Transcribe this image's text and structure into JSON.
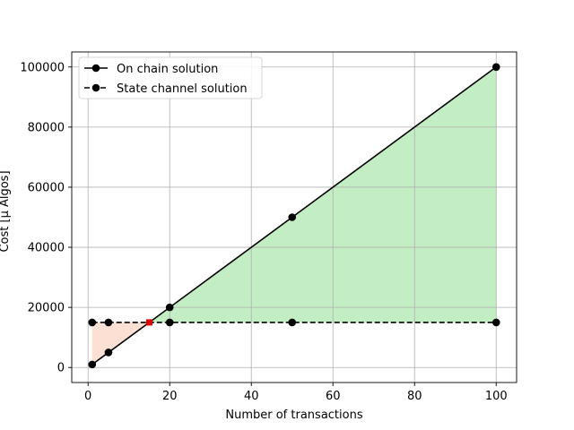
{
  "chart_data": {
    "type": "line",
    "title": "",
    "xlabel": "Number of transactions",
    "ylabel": "Cost [µ Algos]",
    "xlim": [
      -4,
      105
    ],
    "ylim": [
      -5000,
      105000
    ],
    "xticks": [
      0,
      20,
      40,
      60,
      80,
      100
    ],
    "yticks": [
      0,
      20000,
      40000,
      60000,
      80000,
      100000
    ],
    "grid": true,
    "legend_position": "top-left",
    "series": [
      {
        "name": "On chain solution",
        "linestyle": "solid",
        "color": "#000000",
        "x": [
          1,
          5,
          20,
          50,
          100
        ],
        "y": [
          1000,
          5000,
          20000,
          50000,
          100000
        ]
      },
      {
        "name": "State channel solution",
        "linestyle": "dashed",
        "color": "#000000",
        "x": [
          1,
          5,
          20,
          50,
          100
        ],
        "y": [
          15000,
          15000,
          15000,
          15000,
          15000
        ]
      }
    ],
    "intersection": {
      "x": 15,
      "y": 15000,
      "color": "#e00000"
    },
    "fill_regions": [
      {
        "name": "on-chain-cheaper",
        "color": "#fde0d4",
        "x_from": 1,
        "x_to": 15
      },
      {
        "name": "state-channel-cheaper",
        "color": "#c3edc3",
        "x_from": 15,
        "x_to": 100
      }
    ]
  }
}
